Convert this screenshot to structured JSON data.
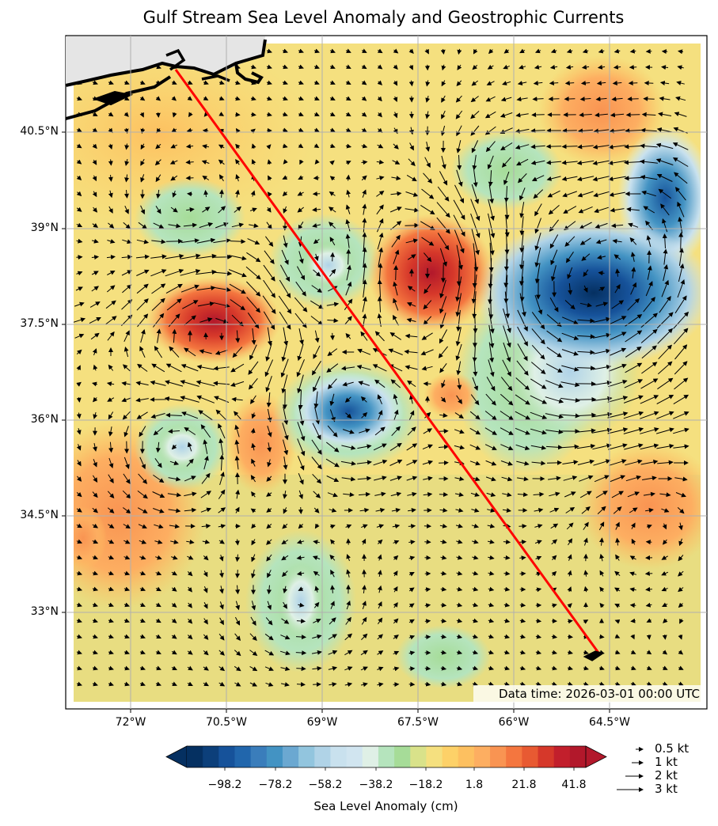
{
  "title": "Gulf Stream Sea Level Anomaly and Geostrophic Currents",
  "data_time": "Data time: 2026-03-01 00:00 UTC",
  "lon_ticks": [
    "72°W",
    "70.5°W",
    "69°W",
    "67.5°W",
    "66°W",
    "64.5°W"
  ],
  "lat_ticks": [
    "40.5°N",
    "39°N",
    "37.5°N",
    "36°N",
    "34.5°N",
    "33°N"
  ],
  "colorbar": {
    "label": "Sea Level Anomaly (cm)",
    "ticks": [
      "−98.2",
      "−78.2",
      "−58.2",
      "−38.2",
      "−18.2",
      "1.8",
      "21.8",
      "41.8"
    ],
    "colors": [
      "#053061",
      "#0c3f7a",
      "#16529a",
      "#2166ac",
      "#3a7dbb",
      "#4393c3",
      "#6ba8d1",
      "#92c5de",
      "#b0d3e7",
      "#c9e1ee",
      "#d1e5f0",
      "#dff0e6",
      "#b5e4bd",
      "#a6dc98",
      "#d9e28a",
      "#f5e07f",
      "#fdd168",
      "#fdc060",
      "#fdae61",
      "#f99452",
      "#f4763f",
      "#e85a32",
      "#d6382a",
      "#c21f2c",
      "#b2182b"
    ]
  },
  "quiver_key": [
    "0.5 kt",
    "1 kt",
    "2 kt",
    "3 kt"
  ],
  "transect": {
    "start": {
      "lon": "71.3°W",
      "lat": "41.3°N"
    },
    "end": {
      "lon": "64.6°W",
      "lat": "32.3°N"
    }
  },
  "colors": {
    "transect": "#ff0000",
    "land": "#e5e5e5",
    "coast": "#000000",
    "grid": "#b0b0b0",
    "ocean_base": "#e5dc82"
  }
}
